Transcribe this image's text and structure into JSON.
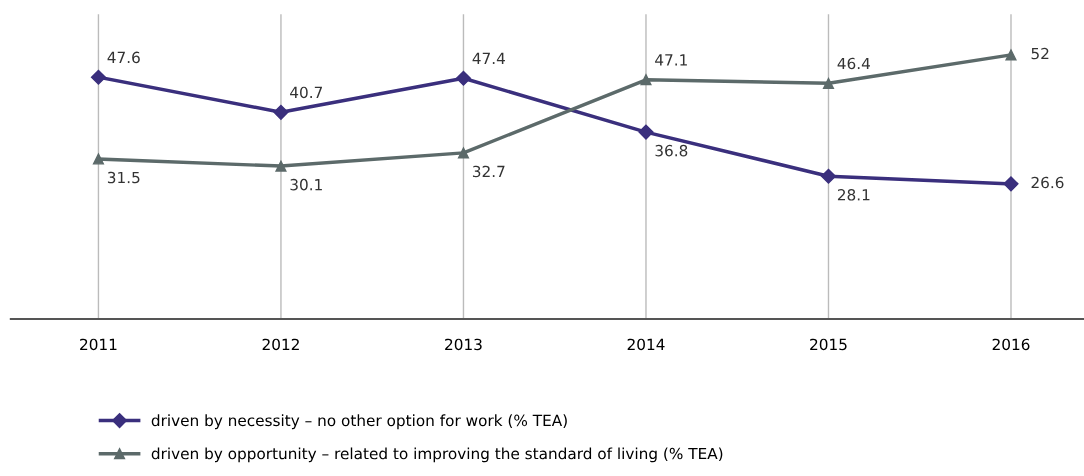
{
  "chart_data": {
    "type": "line",
    "categories": [
      "2011",
      "2012",
      "2013",
      "2014",
      "2015",
      "2016"
    ],
    "series": [
      {
        "name": "driven by necessity – no other option for work (% TEA)",
        "color": "#3a2f7d",
        "marker": "diamond",
        "values": [
          47.6,
          40.7,
          47.4,
          36.8,
          28.1,
          26.6
        ]
      },
      {
        "name": "driven by opportunity – related to improving the standard of living (% TEA)",
        "color": "#5c6a6a",
        "marker": "triangle",
        "values": [
          31.5,
          30.1,
          32.7,
          47.1,
          46.4,
          52
        ]
      }
    ],
    "ylim": [
      0,
      60
    ],
    "tick_labels": "x",
    "grid": "x",
    "legend": "bottom",
    "data_labels": true,
    "line_style": "solid"
  }
}
